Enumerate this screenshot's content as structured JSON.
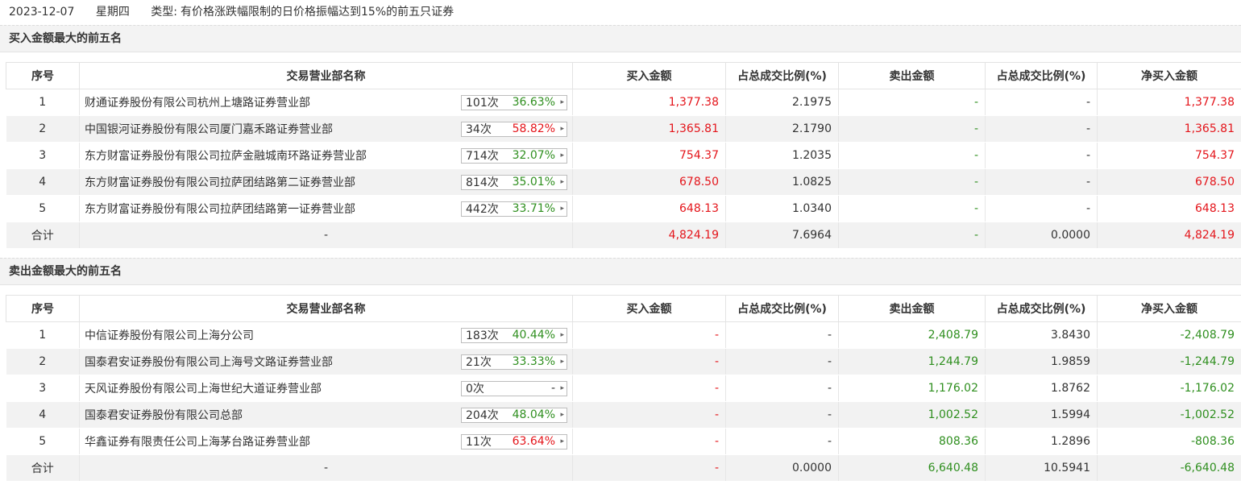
{
  "header": {
    "date": "2023-12-07",
    "weekday": "星期四",
    "type_label": "类型:",
    "type_text": "有价格涨跌幅限制的日价格振幅达到15%的前五只证券"
  },
  "columns": {
    "idx": "序号",
    "name": "交易营业部名称",
    "buy": "买入金额",
    "buy_pct": "占总成交比例(%)",
    "sell": "卖出金额",
    "sell_pct": "占总成交比例(%)",
    "net": "净买入金额"
  },
  "colors": {
    "red": "#e4151b",
    "green": "#2f8f1f"
  },
  "buy_section": {
    "title": "买入金额最大的前五名",
    "rows": [
      {
        "idx": "1",
        "name": "财通证券股份有限公司杭州上塘路证券营业部",
        "times": "101次",
        "rate": "36.63%",
        "rate_color": "green",
        "buy": "1,377.38",
        "buy_pct": "2.1975",
        "sell": "-",
        "sell_pct": "-",
        "net": "1,377.38"
      },
      {
        "idx": "2",
        "name": "中国银河证券股份有限公司厦门嘉禾路证券营业部",
        "times": "34次",
        "rate": "58.82%",
        "rate_color": "red",
        "buy": "1,365.81",
        "buy_pct": "2.1790",
        "sell": "-",
        "sell_pct": "-",
        "net": "1,365.81"
      },
      {
        "idx": "3",
        "name": "东方财富证券股份有限公司拉萨金融城南环路证券营业部",
        "times": "714次",
        "rate": "32.07%",
        "rate_color": "green",
        "buy": "754.37",
        "buy_pct": "1.2035",
        "sell": "-",
        "sell_pct": "-",
        "net": "754.37"
      },
      {
        "idx": "4",
        "name": "东方财富证券股份有限公司拉萨团结路第二证券营业部",
        "times": "814次",
        "rate": "35.01%",
        "rate_color": "green",
        "buy": "678.50",
        "buy_pct": "1.0825",
        "sell": "-",
        "sell_pct": "-",
        "net": "678.50"
      },
      {
        "idx": "5",
        "name": "东方财富证券股份有限公司拉萨团结路第一证券营业部",
        "times": "442次",
        "rate": "33.71%",
        "rate_color": "green",
        "buy": "648.13",
        "buy_pct": "1.0340",
        "sell": "-",
        "sell_pct": "-",
        "net": "648.13"
      }
    ],
    "total": {
      "label": "合计",
      "name": "-",
      "buy": "4,824.19",
      "buy_pct": "7.6964",
      "sell": "-",
      "sell_pct": "0.0000",
      "net": "4,824.19"
    }
  },
  "sell_section": {
    "title": "卖出金额最大的前五名",
    "rows": [
      {
        "idx": "1",
        "name": "中信证券股份有限公司上海分公司",
        "times": "183次",
        "rate": "40.44%",
        "rate_color": "green",
        "buy": "-",
        "buy_pct": "-",
        "sell": "2,408.79",
        "sell_pct": "3.8430",
        "net": "-2,408.79"
      },
      {
        "idx": "2",
        "name": "国泰君安证券股份有限公司上海号文路证券营业部",
        "times": "21次",
        "rate": "33.33%",
        "rate_color": "green",
        "buy": "-",
        "buy_pct": "-",
        "sell": "1,244.79",
        "sell_pct": "1.9859",
        "net": "-1,244.79"
      },
      {
        "idx": "3",
        "name": "天风证券股份有限公司上海世纪大道证券营业部",
        "times": "0次",
        "rate": "-",
        "rate_color": "black",
        "buy": "-",
        "buy_pct": "-",
        "sell": "1,176.02",
        "sell_pct": "1.8762",
        "net": "-1,176.02"
      },
      {
        "idx": "4",
        "name": "国泰君安证券股份有限公司总部",
        "times": "204次",
        "rate": "48.04%",
        "rate_color": "green",
        "buy": "-",
        "buy_pct": "-",
        "sell": "1,002.52",
        "sell_pct": "1.5994",
        "net": "-1,002.52"
      },
      {
        "idx": "5",
        "name": "华鑫证券有限责任公司上海茅台路证券营业部",
        "times": "11次",
        "rate": "63.64%",
        "rate_color": "red",
        "buy": "-",
        "buy_pct": "-",
        "sell": "808.36",
        "sell_pct": "1.2896",
        "net": "-808.36"
      }
    ],
    "total": {
      "label": "合计",
      "name": "-",
      "buy": "-",
      "buy_pct": "0.0000",
      "sell": "6,640.48",
      "sell_pct": "10.5941",
      "net": "-6,640.48"
    }
  }
}
